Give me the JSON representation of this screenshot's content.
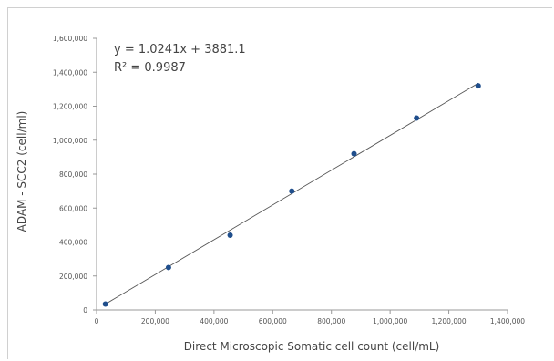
{
  "chart_data": {
    "type": "scatter",
    "xlabel": "Direct Microscopic Somatic cell count (cell/mL)",
    "ylabel": "ADAM - SCC2 (cell/ml)",
    "xlim": [
      0,
      1400000
    ],
    "ylim": [
      0,
      1600000
    ],
    "x_ticks": [
      0,
      200000,
      400000,
      600000,
      800000,
      1000000,
      1200000,
      1400000
    ],
    "y_ticks": [
      0,
      200000,
      400000,
      600000,
      800000,
      1000000,
      1200000,
      1400000,
      1600000
    ],
    "x_tick_labels": [
      "0",
      "200,000",
      "400,000",
      "600,000",
      "800,000",
      "1,000,000",
      "1,200,000",
      "1,400,000"
    ],
    "y_tick_labels": [
      "0",
      "200,000",
      "400,000",
      "600,000",
      "800,000",
      "1,000,000",
      "1,200,000",
      "1,400,000",
      "1,600,000"
    ],
    "points": [
      {
        "x": 30000,
        "y": 35000
      },
      {
        "x": 245000,
        "y": 250000
      },
      {
        "x": 455000,
        "y": 440000
      },
      {
        "x": 665000,
        "y": 700000
      },
      {
        "x": 877000,
        "y": 920000
      },
      {
        "x": 1090000,
        "y": 1130000
      },
      {
        "x": 1300000,
        "y": 1320000
      }
    ],
    "trendline": {
      "slope": 1.0241,
      "intercept": 3881.1,
      "x_range": [
        30000,
        1300000
      ]
    },
    "annotations": [
      "y = 1.0241x + 3881.1",
      "R² = 0.9987"
    ],
    "colors": {
      "points": "#1f4e8c",
      "line": "#555555",
      "axis": "#999999"
    },
    "grid": false,
    "legend": "none"
  }
}
